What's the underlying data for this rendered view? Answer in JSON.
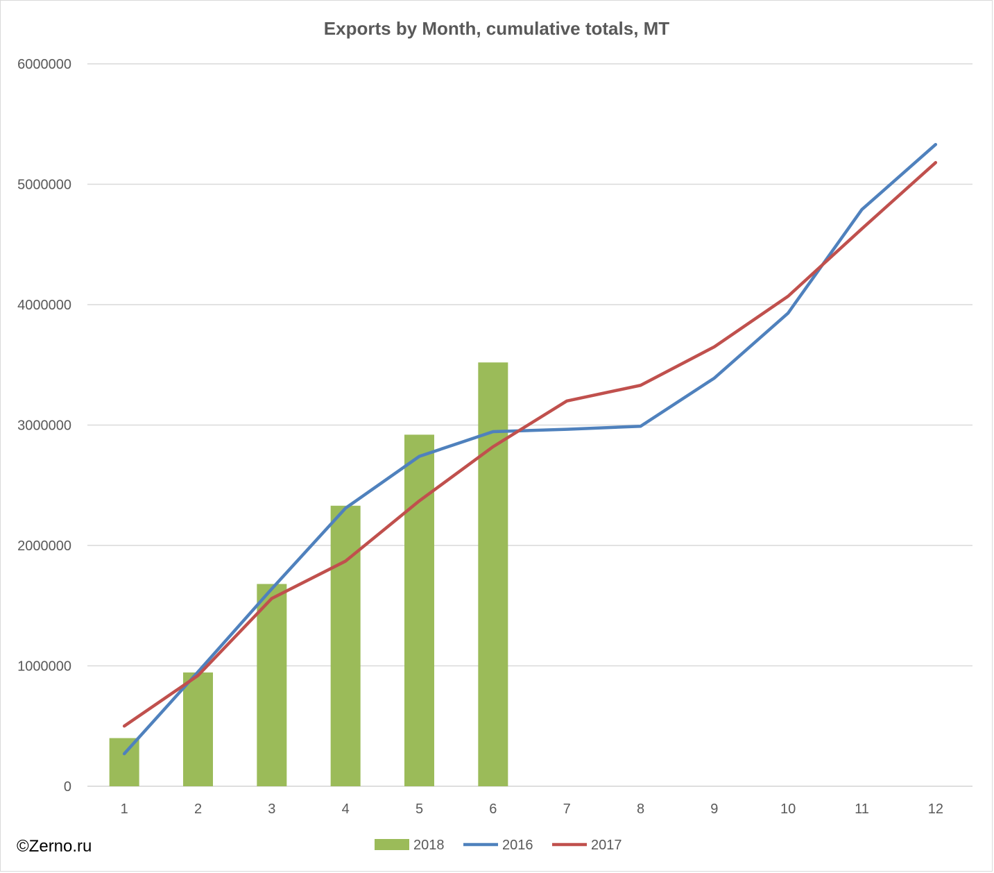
{
  "watermark": "©Zerno.ru",
  "chart_data": {
    "type": "bar+line",
    "title": "Exports by Month, cumulative totals, MT",
    "xlabel": "",
    "ylabel": "",
    "categories": [
      "1",
      "2",
      "3",
      "4",
      "5",
      "6",
      "7",
      "8",
      "9",
      "10",
      "11",
      "12"
    ],
    "ylim": [
      0,
      6000000
    ],
    "yticks": [
      "0",
      "1000000",
      "2000000",
      "3000000",
      "4000000",
      "5000000",
      "6000000"
    ],
    "grid": true,
    "legend_position": "bottom",
    "series": [
      {
        "name": "2018",
        "kind": "bar",
        "color": "#9bbb59",
        "values": [
          400000,
          945000,
          1680000,
          2330000,
          2920000,
          3520000,
          null,
          null,
          null,
          null,
          null,
          null
        ]
      },
      {
        "name": "2016",
        "kind": "line",
        "color": "#4f81bd",
        "values": [
          270000,
          950000,
          1640000,
          2310000,
          2740000,
          2945000,
          2965000,
          2990000,
          3390000,
          3930000,
          4790000,
          5330000
        ]
      },
      {
        "name": "2017",
        "kind": "line",
        "color": "#c0504d",
        "values": [
          500000,
          920000,
          1560000,
          1870000,
          2370000,
          2820000,
          3200000,
          3330000,
          3650000,
          4070000,
          4630000,
          5180000
        ]
      }
    ]
  }
}
